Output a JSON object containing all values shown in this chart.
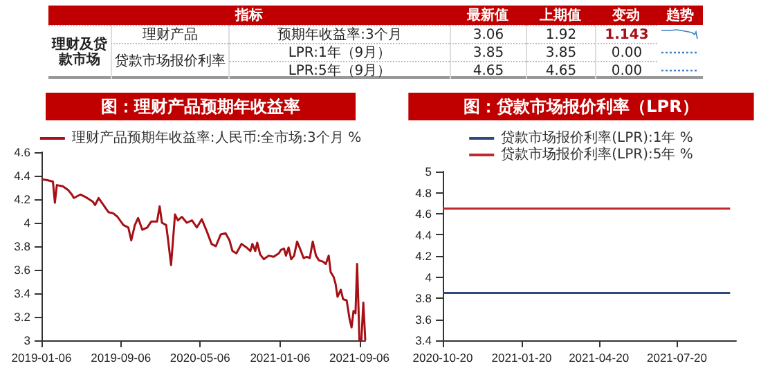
{
  "chart_data": [
    {
      "type": "other",
      "annotations": [
        "指标",
        "最新值",
        "上期值",
        "变动",
        "趋势",
        "理财及贷款市场",
        "理财产品",
        "预期年收益率:3个月",
        "3.06",
        "1.92",
        "1.143",
        "贷款市场报价利率",
        "LPR:1年（9月）",
        "3.85",
        "3.85",
        "0.00",
        "LPR:5年（9月）",
        "4.65",
        "4.65",
        "0.00"
      ]
    },
    {
      "type": "line",
      "title": "图：理财产品预期年收益率",
      "marker": "none",
      "legend": "top",
      "xlim": [
        "2019-01-06",
        "2021-09-24"
      ],
      "xticks": [
        "2019-01-06",
        "2019-09-06",
        "2020-05-06",
        "2021-01-06",
        "2021-09-06"
      ],
      "ylim": [
        3,
        4.6
      ],
      "yticks": [
        3,
        3.2,
        3.4,
        3.6,
        3.8,
        4,
        4.2,
        4.4,
        4.6
      ],
      "series": [
        {
          "name": "理财产品预期年收益率:人民币:全市场:3个月 %",
          "color": "#a50f15",
          "x": [
            "2019-01-06",
            "2019-01-26",
            "2019-02-10",
            "2019-02-16",
            "2019-02-22",
            "2019-03-12",
            "2019-03-28",
            "2019-04-09",
            "2019-04-15",
            "2019-05-05",
            "2019-05-20",
            "2019-06-12",
            "2019-06-19",
            "2019-06-30",
            "2019-07-20",
            "2019-07-30",
            "2019-08-14",
            "2019-08-27",
            "2019-09-14",
            "2019-09-29",
            "2019-10-08",
            "2019-10-19",
            "2019-10-29",
            "2019-11-11",
            "2019-11-26",
            "2019-12-08",
            "2019-12-26",
            "2020-01-03",
            "2020-01-10",
            "2020-01-23",
            "2020-01-29",
            "2020-02-07",
            "2020-02-19",
            "2020-02-28",
            "2020-03-11",
            "2020-03-26",
            "2020-04-11",
            "2020-04-26",
            "2020-05-11",
            "2020-05-26",
            "2020-06-10",
            "2020-06-23",
            "2020-07-08",
            "2020-07-23",
            "2020-08-04",
            "2020-08-13",
            "2020-08-25",
            "2020-09-10",
            "2020-09-25",
            "2020-10-07",
            "2020-10-13",
            "2020-10-22",
            "2020-10-28",
            "2020-11-06",
            "2020-11-17",
            "2020-12-02",
            "2020-12-17",
            "2021-01-02",
            "2021-01-09",
            "2021-01-18",
            "2021-01-24",
            "2021-02-01",
            "2021-02-09",
            "2021-02-18",
            "2021-02-27",
            "2021-03-08",
            "2021-03-19",
            "2021-03-29",
            "2021-04-07",
            "2021-04-16",
            "2021-04-26",
            "2021-05-05",
            "2021-05-17",
            "2021-05-26",
            "2021-06-04",
            "2021-06-10",
            "2021-06-19",
            "2021-06-25",
            "2021-07-01",
            "2021-07-11",
            "2021-07-18",
            "2021-07-29",
            "2021-08-07",
            "2021-08-13",
            "2021-08-19",
            "2021-08-25",
            "2021-08-30",
            "2021-09-03",
            "2021-09-06",
            "2021-09-12",
            "2021-09-18",
            "2021-09-24"
          ],
          "values": [
            4.37,
            4.36,
            4.35,
            4.17,
            4.32,
            4.31,
            4.28,
            4.24,
            4.21,
            4.24,
            4.22,
            4.18,
            4.15,
            4.21,
            4.13,
            4.09,
            4.08,
            4.05,
            3.98,
            3.96,
            3.85,
            3.98,
            4.04,
            3.94,
            3.96,
            4.01,
            4.01,
            4.14,
            4.0,
            3.98,
            3.85,
            3.64,
            4.07,
            4.02,
            4.05,
            4.0,
            4.02,
            3.96,
            4.03,
            3.93,
            3.82,
            3.8,
            3.9,
            3.91,
            3.85,
            3.76,
            3.74,
            3.82,
            3.79,
            3.76,
            3.82,
            3.76,
            3.83,
            3.73,
            3.69,
            3.72,
            3.71,
            3.74,
            3.77,
            3.78,
            3.72,
            3.79,
            3.69,
            3.72,
            3.84,
            3.78,
            3.7,
            3.71,
            3.7,
            3.84,
            3.72,
            3.68,
            3.67,
            3.65,
            3.72,
            3.58,
            3.54,
            3.48,
            3.37,
            3.43,
            3.35,
            3.34,
            3.18,
            3.11,
            3.25,
            3.23,
            3.65,
            3.3,
            3.0,
            3.0,
            3.32,
            3.0
          ]
        }
      ]
    },
    {
      "type": "line",
      "title": "图：贷款市场报价利率（LPR）",
      "marker": "none",
      "legend": "top",
      "xlim": [
        "2020-10-20",
        "2021-09-27"
      ],
      "xticks": [
        "2020-10-20",
        "2021-01-20",
        "2021-04-20",
        "2021-07-20"
      ],
      "ylim": [
        3.4,
        5
      ],
      "yticks": [
        3.4,
        3.6,
        3.8,
        4,
        4.2,
        4.4,
        4.6,
        4.8,
        5
      ],
      "series": [
        {
          "name": "贷款市场报价利率(LPR):1年 %",
          "color": "#2e4a7d",
          "x": [
            "2020-10-20",
            "2020-11-20",
            "2020-12-20",
            "2021-01-20",
            "2021-02-20",
            "2021-03-20",
            "2021-04-20",
            "2021-05-20",
            "2021-06-20",
            "2021-07-20",
            "2021-08-20",
            "2021-09-20"
          ],
          "values": [
            3.85,
            3.85,
            3.85,
            3.85,
            3.85,
            3.85,
            3.85,
            3.85,
            3.85,
            3.85,
            3.85,
            3.85
          ]
        },
        {
          "name": "贷款市场报价利率(LPR):5年 %",
          "color": "#c0282d",
          "x": [
            "2020-10-20",
            "2020-11-20",
            "2020-12-20",
            "2021-01-20",
            "2021-02-20",
            "2021-03-20",
            "2021-04-20",
            "2021-05-20",
            "2021-06-20",
            "2021-07-20",
            "2021-08-20",
            "2021-09-20"
          ],
          "values": [
            4.65,
            4.65,
            4.65,
            4.65,
            4.65,
            4.65,
            4.65,
            4.65,
            4.65,
            4.65,
            4.65,
            4.65
          ]
        }
      ]
    }
  ]
}
